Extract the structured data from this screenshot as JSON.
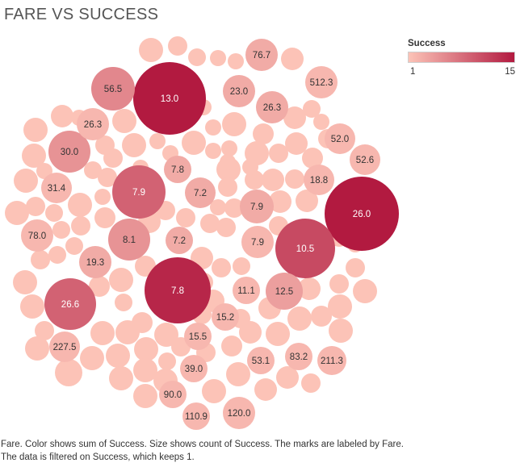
{
  "title": "FARE VS SUCCESS",
  "legend": {
    "title": "Success",
    "min_label": "1",
    "max_label": "15",
    "color_low": "#fcc3b7",
    "color_high": "#b21a40"
  },
  "caption": "Fare.  Color shows sum of Success.  Size shows count of Success.  The marks are labeled by Fare. The data is filtered on Success, which keeps 1.",
  "chart_data": {
    "type": "packed-bubble",
    "title": "FARE VS SUCCESS",
    "label_field": "Fare",
    "color_field": "sum of Success",
    "size_field": "count of Success",
    "color_range": [
      1,
      15
    ],
    "labeled_bubbles": [
      {
        "label": "13.0",
        "success": 15
      },
      {
        "label": "26.0",
        "success": 15
      },
      {
        "label": "7.8",
        "success": 14
      },
      {
        "label": "10.5",
        "success": 11
      },
      {
        "label": "7.9",
        "success": 9
      },
      {
        "label": "26.6",
        "success": 9
      },
      {
        "label": "56.5",
        "success": 6
      },
      {
        "label": "30.0",
        "success": 5
      },
      {
        "label": "8.1",
        "success": 5
      },
      {
        "label": "12.5",
        "success": 4
      },
      {
        "label": "7.9",
        "success": 3
      },
      {
        "label": "7.2",
        "success": 3
      },
      {
        "label": "7.8",
        "success": 3
      },
      {
        "label": "7.2",
        "success": 3
      },
      {
        "label": "19.3",
        "success": 3
      },
      {
        "label": "23.0",
        "success": 3
      },
      {
        "label": "26.3",
        "success": 3
      },
      {
        "label": "76.7",
        "success": 3
      },
      {
        "label": "7.9",
        "success": 2
      },
      {
        "label": "52.0",
        "success": 2
      },
      {
        "label": "52.6",
        "success": 2
      },
      {
        "label": "18.8",
        "success": 2
      },
      {
        "label": "31.4",
        "success": 2
      },
      {
        "label": "78.0",
        "success": 2
      },
      {
        "label": "26.3",
        "success": 2
      },
      {
        "label": "512.3",
        "success": 2
      },
      {
        "label": "11.1",
        "success": 2
      },
      {
        "label": "15.2",
        "success": 2
      },
      {
        "label": "15.5",
        "success": 2
      },
      {
        "label": "39.0",
        "success": 2
      },
      {
        "label": "53.1",
        "success": 2
      },
      {
        "label": "83.2",
        "success": 2
      },
      {
        "label": "211.3",
        "success": 2
      },
      {
        "label": "227.5",
        "success": 2
      },
      {
        "label": "90.0",
        "success": 2
      },
      {
        "label": "110.9",
        "success": 2
      },
      {
        "label": "120.0",
        "success": 2
      }
    ],
    "unlabeled_bubbles": 116
  }
}
